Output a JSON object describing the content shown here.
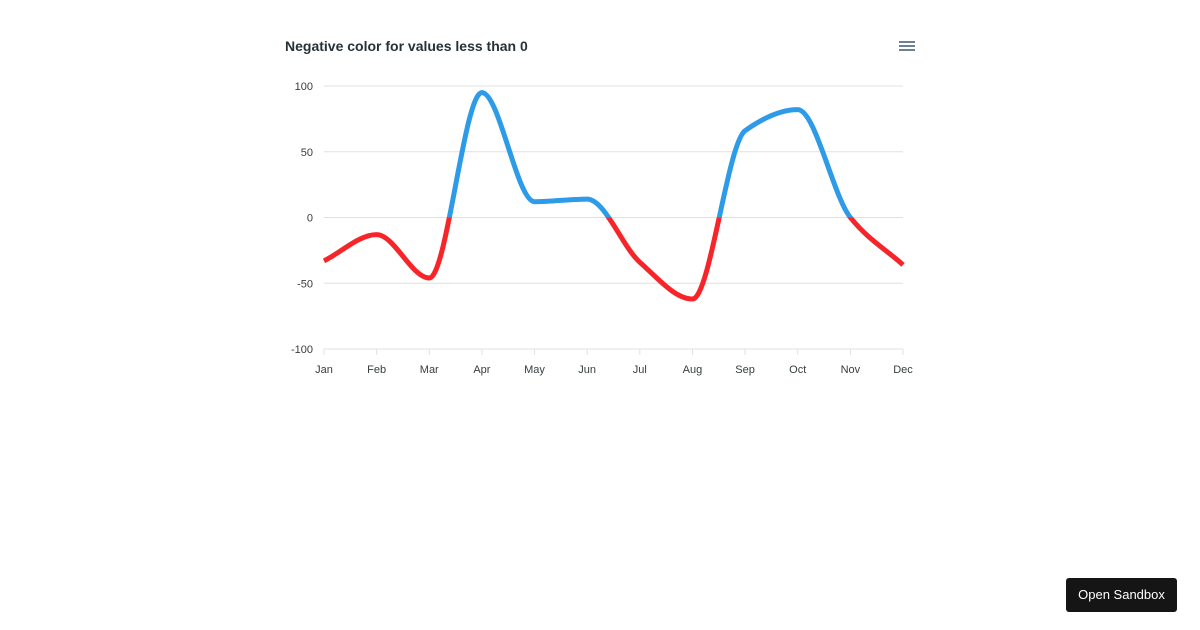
{
  "chart_data": {
    "type": "line",
    "title": "Negative color for values less than 0",
    "categories": [
      "Jan",
      "Feb",
      "Mar",
      "Apr",
      "May",
      "Jun",
      "Jul",
      "Aug",
      "Sep",
      "Oct",
      "Nov",
      "Dec"
    ],
    "series": [
      {
        "values": [
          -33,
          -13,
          -46,
          95,
          12,
          14,
          -34,
          -62,
          66,
          82,
          0,
          -36
        ]
      }
    ],
    "ylim": [
      -100,
      100
    ],
    "yticks": [
      100,
      50,
      0,
      -50,
      -100
    ],
    "threshold": 0,
    "colors": {
      "positive": "#2e9be8",
      "negative": "#f7252a"
    },
    "grid": true,
    "legend": "none"
  },
  "toolbar": {
    "menu_icon": "hamburger-menu-icon"
  },
  "sandbox_button": {
    "label": "Open Sandbox"
  }
}
